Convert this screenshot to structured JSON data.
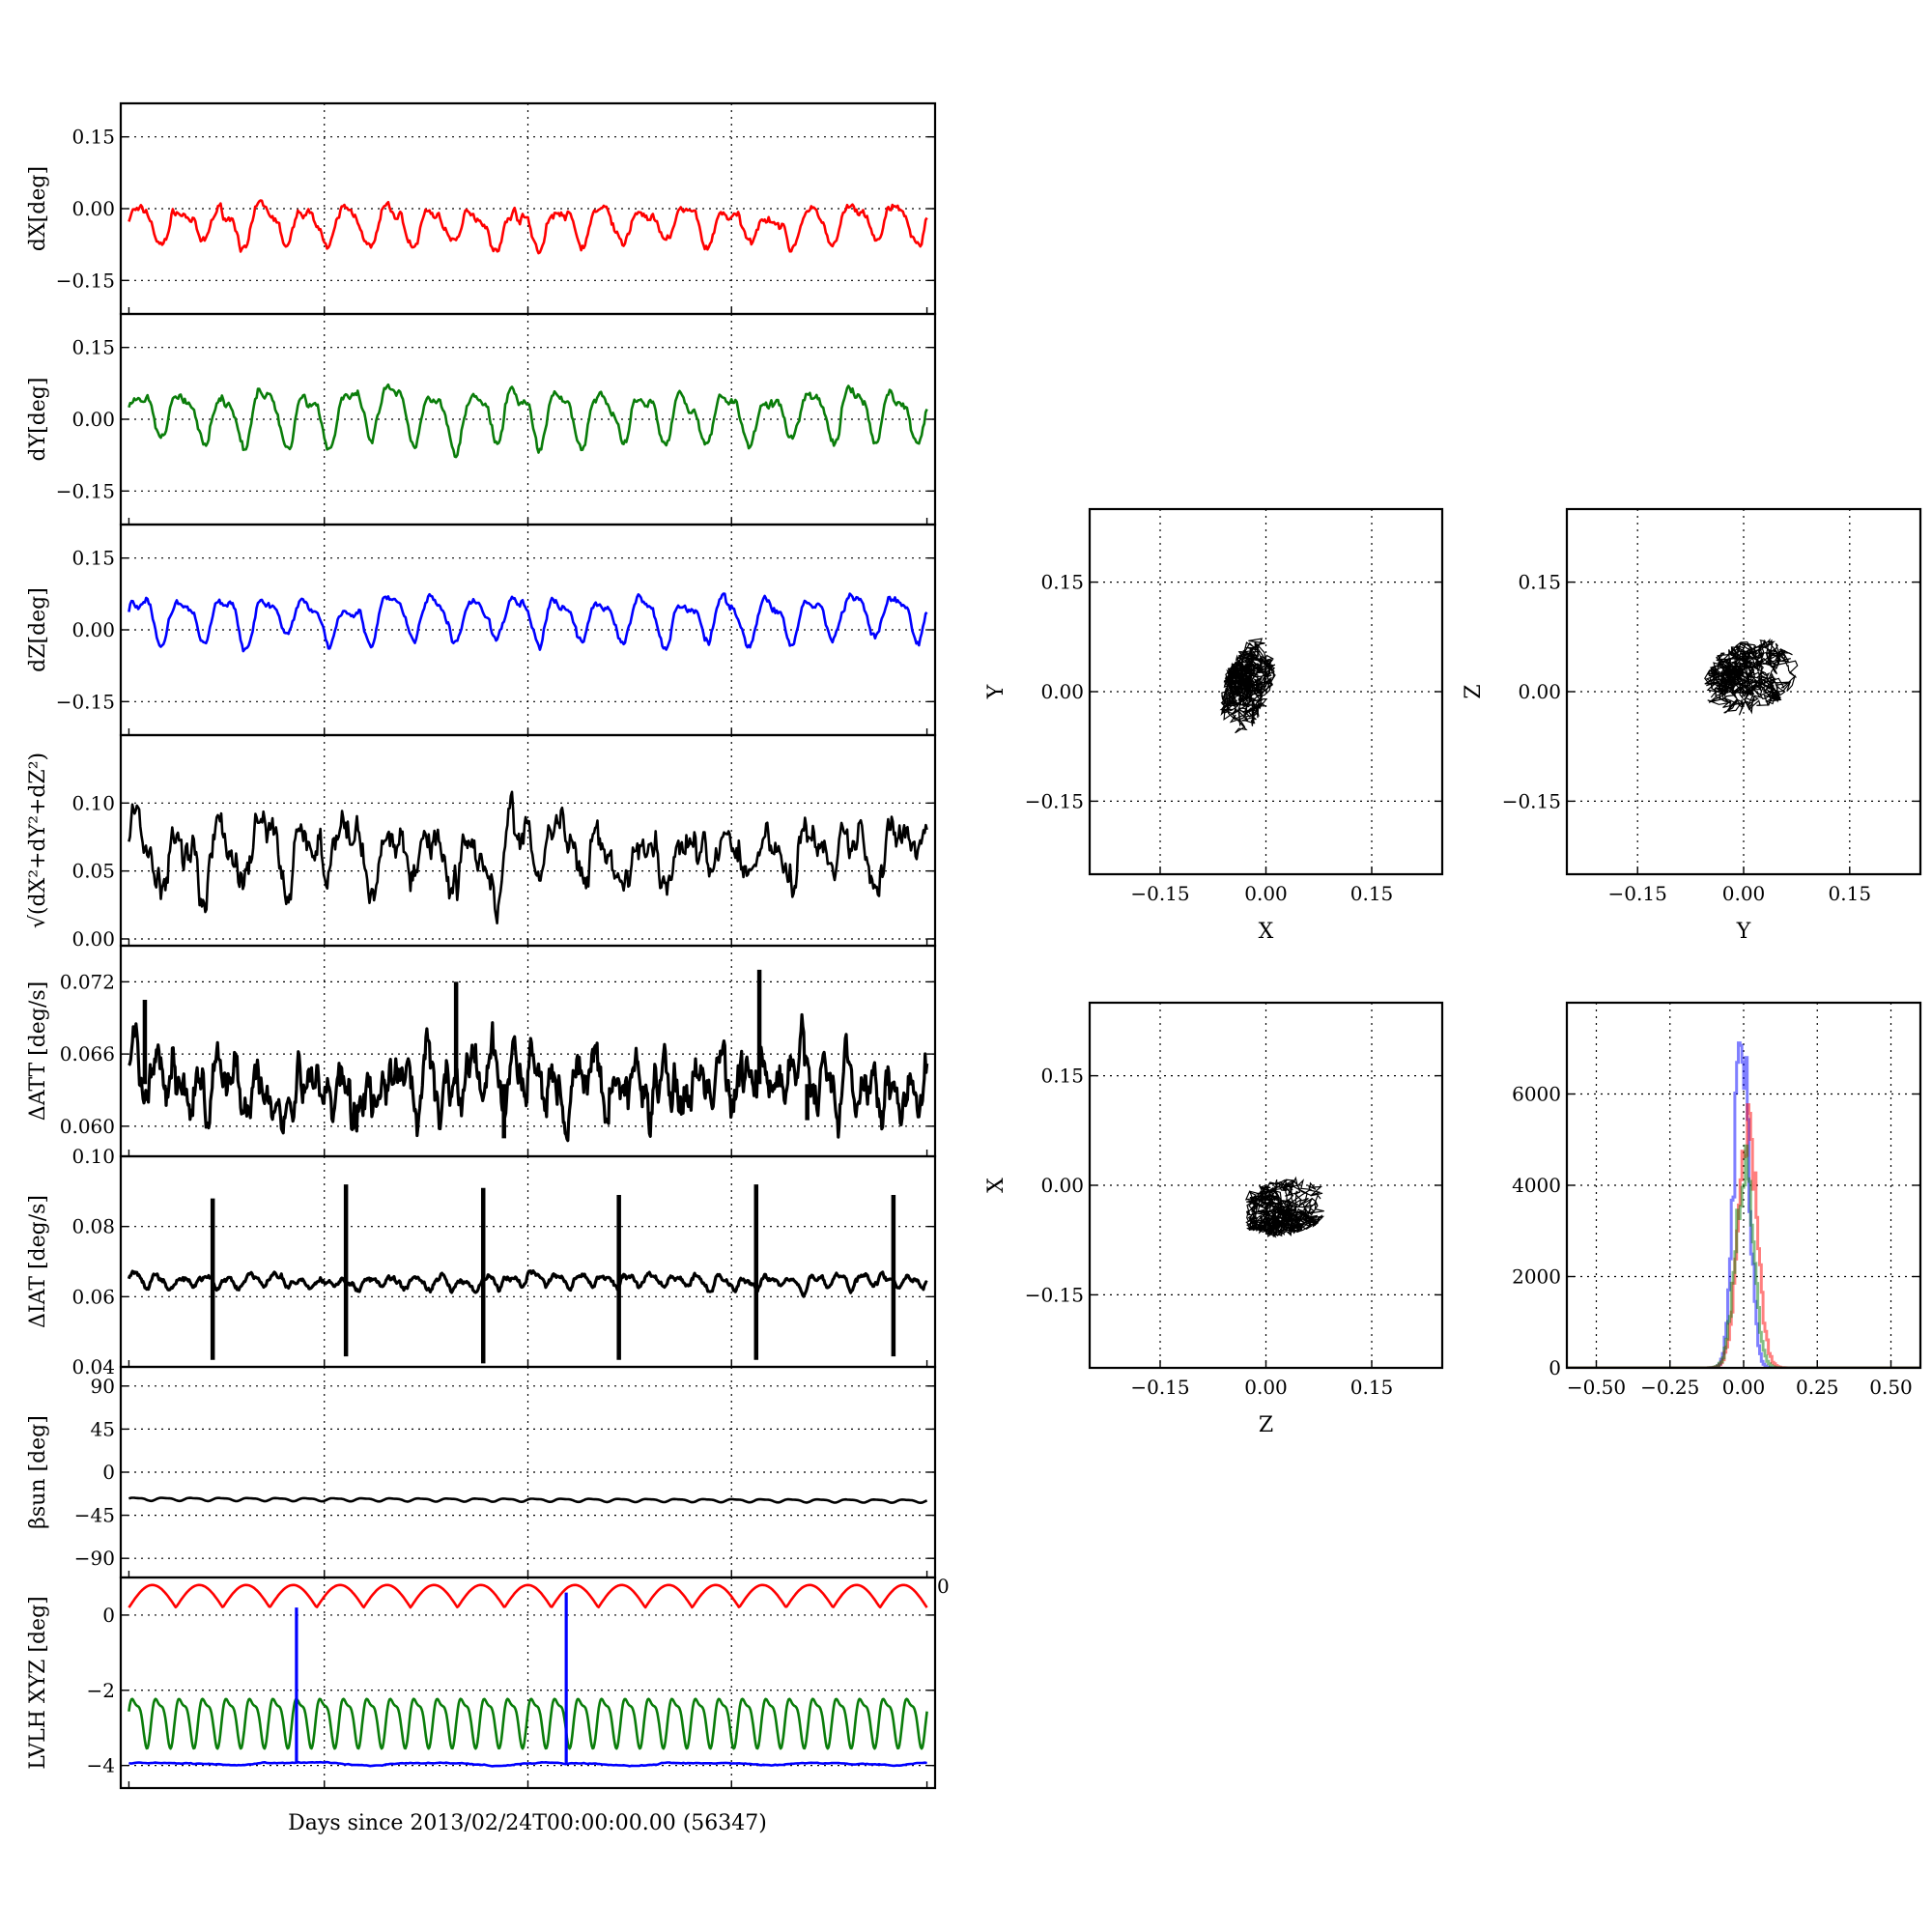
{
  "xlabel": "Days since 2013/02/24T00:00:00.00 (56347)",
  "colors": {
    "red": "#ff0000",
    "green": "#0a7d0a",
    "blue": "#0000ff",
    "black": "#000000"
  },
  "chart_data": [
    {
      "id": "dx",
      "type": "line",
      "ylabel": "dX[deg]",
      "ylim": [
        -0.22,
        0.22
      ],
      "yticks": [
        0.15,
        0.0,
        -0.15
      ],
      "ytick_labels": [
        "0.15",
        "0.00",
        "−0.15"
      ],
      "grid": true,
      "series": [
        {
          "color": "red",
          "center": -0.035,
          "amp": 0.035,
          "cycles": 19,
          "noise": 0.008,
          "samples": 600
        }
      ]
    },
    {
      "id": "dy",
      "type": "line",
      "ylabel": "dY[deg]",
      "ylim": [
        -0.22,
        0.22
      ],
      "yticks": [
        0.15,
        0.0,
        -0.15
      ],
      "ytick_labels": [
        "0.15",
        "0.00",
        "−0.15"
      ],
      "grid": true,
      "series": [
        {
          "color": "green",
          "center": 0.01,
          "amp": 0.05,
          "cycles": 19,
          "noise": 0.008,
          "samples": 600
        }
      ]
    },
    {
      "id": "dz",
      "type": "line",
      "ylabel": "dZ[deg]",
      "ylim": [
        -0.22,
        0.22
      ],
      "yticks": [
        0.15,
        0.0,
        -0.15
      ],
      "ytick_labels": [
        "0.15",
        "0.00",
        "−0.15"
      ],
      "grid": true,
      "series": [
        {
          "color": "blue",
          "center": 0.025,
          "amp": 0.04,
          "cycles": 19,
          "noise": 0.007,
          "samples": 600
        }
      ]
    },
    {
      "id": "dmag",
      "type": "line",
      "ylabel": "√(dX²+dY²+dZ²)",
      "ylim": [
        -0.005,
        0.15
      ],
      "yticks": [
        0.1,
        0.05,
        0.0
      ],
      "ytick_labels": [
        "0.10",
        "0.05",
        "0.00"
      ],
      "grid": true,
      "series": [
        {
          "color": "black",
          "center": 0.065,
          "amp": 0.018,
          "cycles": 19,
          "noise": 0.01,
          "samples": 700
        }
      ]
    },
    {
      "id": "datt",
      "type": "line",
      "ylabel": "ΔATT [deg/s]",
      "ylim": [
        0.0575,
        0.075
      ],
      "yticks": [
        0.072,
        0.066,
        0.06
      ],
      "ytick_labels": [
        "0.072",
        "0.066",
        "0.060"
      ],
      "grid": true,
      "series": [
        {
          "color": "black",
          "center": 0.0635,
          "amp": 0.0012,
          "cycles": 38,
          "noise": 0.0013,
          "samples": 900
        }
      ],
      "spikes": [
        {
          "x": 0.41,
          "y": 0.072
        },
        {
          "x": 0.47,
          "y": 0.059
        },
        {
          "x": 0.79,
          "y": 0.073
        },
        {
          "x": 0.85,
          "y": 0.0605
        },
        {
          "x": 0.02,
          "y": 0.0705
        }
      ]
    },
    {
      "id": "diat",
      "type": "line",
      "ylabel": "ΔIAT [deg/s]",
      "ylim": [
        0.04,
        0.1
      ],
      "yticks": [
        0.1,
        0.08,
        0.06,
        0.04
      ],
      "ytick_labels": [
        "0.10",
        "0.08",
        "0.06",
        "0.04"
      ],
      "grid": true,
      "series": [
        {
          "color": "black",
          "center": 0.0645,
          "amp": 0.0016,
          "cycles": 34,
          "noise": 0.0006,
          "samples": 900
        }
      ],
      "spikes": [
        {
          "x": 0.105,
          "hi": 0.088,
          "lo": 0.042
        },
        {
          "x": 0.272,
          "hi": 0.092,
          "lo": 0.043
        },
        {
          "x": 0.444,
          "hi": 0.091,
          "lo": 0.041
        },
        {
          "x": 0.614,
          "hi": 0.089,
          "lo": 0.042
        },
        {
          "x": 0.786,
          "hi": 0.092,
          "lo": 0.042
        },
        {
          "x": 0.958,
          "hi": 0.089,
          "lo": 0.043
        }
      ]
    },
    {
      "id": "beta",
      "type": "line",
      "ylabel": "βsun [deg]",
      "ylim": [
        -110,
        110
      ],
      "yticks": [
        90,
        45,
        0,
        -45,
        -90
      ],
      "ytick_labels": [
        "90",
        "45",
        "0",
        "−45",
        "−90"
      ],
      "grid": true,
      "series": [
        {
          "color": "black",
          "center": -28,
          "amp": 1.5,
          "cycles": 28,
          "noise": 0,
          "samples": 600,
          "drift": -2
        }
      ]
    },
    {
      "id": "lvlh",
      "type": "line",
      "ylabel": "LVLH XYZ [deg]",
      "ylim": [
        -4.6,
        1.0
      ],
      "yticks": [
        0,
        -2,
        -4
      ],
      "ytick_labels": [
        "0",
        "−2",
        "−4"
      ],
      "right_tick_label": "0",
      "grid": true,
      "series": [
        {
          "color": "red",
          "center": 0.5,
          "amp": 0.3,
          "cycles": 17,
          "noise": 0,
          "samples": 700,
          "abs": true
        },
        {
          "color": "green",
          "center": -2.75,
          "amp": 0.6,
          "cycles": 34,
          "noise": 0,
          "samples": 900
        },
        {
          "color": "blue",
          "center": -3.95,
          "amp": 0.03,
          "cycles": 6,
          "noise": 0.01,
          "samples": 400
        }
      ],
      "spikes": [
        {
          "x": 0.21,
          "hi": 0.2,
          "lo": -3.95,
          "color": "blue"
        },
        {
          "x": 0.548,
          "hi": 0.6,
          "lo": -3.95,
          "color": "blue"
        }
      ]
    },
    {
      "id": "xy",
      "type": "scatter",
      "xlabel": "X",
      "ylabel": "Y",
      "xlim": [
        -0.25,
        0.25
      ],
      "ylim": [
        -0.25,
        0.25
      ],
      "xticks": [
        -0.15,
        0.0,
        0.15
      ],
      "xtick_labels": [
        "−0.15",
        "0.00",
        "0.15"
      ],
      "yticks": [
        0.15,
        0.0,
        -0.15
      ],
      "ytick_labels": [
        "0.15",
        "0.00",
        "−0.15"
      ],
      "grid": true,
      "cloud": {
        "cx": -0.025,
        "cy": 0.01,
        "rx": 0.035,
        "ry": 0.07,
        "tilt": -0.3
      }
    },
    {
      "id": "yz",
      "type": "scatter",
      "xlabel": "Y",
      "ylabel": "Z",
      "xlim": [
        -0.25,
        0.25
      ],
      "ylim": [
        -0.25,
        0.25
      ],
      "xticks": [
        -0.15,
        0.0,
        0.15
      ],
      "xtick_labels": [
        "−0.15",
        "0.00",
        "0.15"
      ],
      "yticks": [
        0.15,
        0.0,
        -0.15
      ],
      "ytick_labels": [
        "0.15",
        "0.00",
        "−0.15"
      ],
      "grid": true,
      "cloud": {
        "cx": 0.01,
        "cy": 0.02,
        "rx": 0.07,
        "ry": 0.05,
        "tilt": 0.35
      }
    },
    {
      "id": "zx",
      "type": "scatter",
      "xlabel": "Z",
      "ylabel": "X",
      "xlim": [
        -0.25,
        0.25
      ],
      "ylim": [
        -0.25,
        0.25
      ],
      "xticks": [
        -0.15,
        0.0,
        0.15
      ],
      "xtick_labels": [
        "−0.15",
        "0.00",
        "0.15"
      ],
      "yticks": [
        0.15,
        0.0,
        -0.15
      ],
      "ytick_labels": [
        "0.15",
        "0.00",
        "−0.15"
      ],
      "grid": true,
      "cloud": {
        "cx": 0.025,
        "cy": -0.03,
        "rx": 0.065,
        "ry": 0.04,
        "tilt": 0.15
      }
    },
    {
      "id": "hist",
      "type": "line",
      "xlim": [
        -0.6,
        0.6
      ],
      "ylim": [
        0,
        8000
      ],
      "xticks": [
        -0.5,
        -0.25,
        0.0,
        0.25,
        0.5
      ],
      "xtick_labels": [
        "−0.50",
        "−0.25",
        "0.00",
        "0.25",
        "0.50"
      ],
      "yticks": [
        6000,
        4000,
        2000,
        0
      ],
      "ytick_labels": [
        "6000",
        "4000",
        "2000",
        "0"
      ],
      "grid": true,
      "series": [
        {
          "color": "blue",
          "mu": -0.01,
          "sigma": 0.025,
          "peak": 7400,
          "opacity": 0.5
        },
        {
          "color": "red",
          "mu": 0.01,
          "sigma": 0.032,
          "peak": 5200,
          "opacity": 0.5
        },
        {
          "color": "green",
          "mu": 0.0,
          "sigma": 0.03,
          "peak": 4500,
          "opacity": 0.5
        }
      ]
    }
  ]
}
